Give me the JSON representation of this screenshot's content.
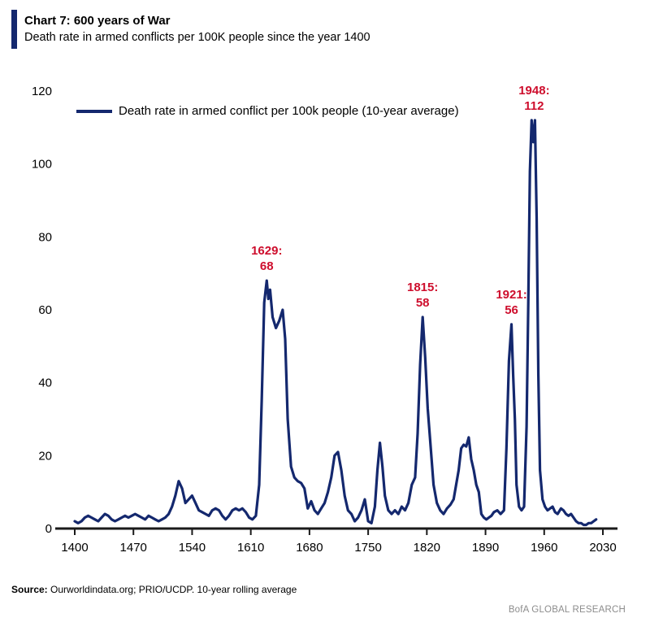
{
  "header": {
    "title": "Chart 7: 600 years of War",
    "subtitle": "Death rate in armed conflicts per 100K people since the year 1400"
  },
  "footer": {
    "source_label": "Source:",
    "source_text": " Ourworldindata.org; PRIO/UCDP. 10-year rolling average",
    "brand": "BofA GLOBAL RESEARCH"
  },
  "colors": {
    "line": "#14286E",
    "accent_bar": "#14286E",
    "annotation": "#CE0E2D",
    "axis": "#1A1A1A",
    "tick_text": "#000000",
    "brand_text": "#8C8C8C"
  },
  "chart_data": {
    "type": "line",
    "title": "Chart 7: 600 years of War",
    "subtitle": "Death rate in armed conflicts per 100K people since the year 1400",
    "legend": [
      {
        "label": "Death rate in armed conflict per 100k people (10-year average)",
        "color": "#14286E"
      }
    ],
    "legend_position": "top-left-inside",
    "grid": false,
    "xlabel": "",
    "ylabel": "",
    "xlim": [
      1400,
      2030
    ],
    "ylim": [
      0,
      120
    ],
    "x_ticks": [
      1400,
      1470,
      1540,
      1610,
      1680,
      1750,
      1820,
      1890,
      1960,
      2030
    ],
    "y_ticks": [
      0,
      20,
      40,
      60,
      80,
      100,
      120
    ],
    "annotations": [
      {
        "line1": "1629:",
        "line2": "68",
        "year": 1629,
        "value": 68
      },
      {
        "line1": "1815:",
        "line2": "58",
        "year": 1815,
        "value": 58
      },
      {
        "line1": "1921:",
        "line2": "56",
        "year": 1921,
        "value": 56
      },
      {
        "line1": "1948:",
        "line2": "112",
        "year": 1948,
        "value": 112
      }
    ],
    "series": [
      {
        "name": "Death rate in armed conflict per 100k people (10-year average)",
        "color": "#14286E",
        "points": [
          [
            1400,
            2
          ],
          [
            1404,
            1.5
          ],
          [
            1408,
            2
          ],
          [
            1412,
            3
          ],
          [
            1416,
            3.5
          ],
          [
            1420,
            3
          ],
          [
            1424,
            2.5
          ],
          [
            1428,
            2
          ],
          [
            1432,
            3
          ],
          [
            1436,
            4
          ],
          [
            1440,
            3.5
          ],
          [
            1444,
            2.5
          ],
          [
            1448,
            2
          ],
          [
            1452,
            2.5
          ],
          [
            1456,
            3
          ],
          [
            1460,
            3.5
          ],
          [
            1464,
            3
          ],
          [
            1468,
            3.5
          ],
          [
            1472,
            4
          ],
          [
            1476,
            3.5
          ],
          [
            1480,
            3
          ],
          [
            1484,
            2.5
          ],
          [
            1488,
            3.5
          ],
          [
            1492,
            3
          ],
          [
            1496,
            2.5
          ],
          [
            1500,
            2
          ],
          [
            1504,
            2.5
          ],
          [
            1508,
            3
          ],
          [
            1512,
            4
          ],
          [
            1516,
            6
          ],
          [
            1520,
            9
          ],
          [
            1524,
            13
          ],
          [
            1528,
            11
          ],
          [
            1532,
            7
          ],
          [
            1536,
            8
          ],
          [
            1540,
            9
          ],
          [
            1544,
            7
          ],
          [
            1548,
            5
          ],
          [
            1552,
            4.5
          ],
          [
            1556,
            4
          ],
          [
            1560,
            3.5
          ],
          [
            1564,
            5
          ],
          [
            1568,
            5.5
          ],
          [
            1572,
            5
          ],
          [
            1576,
            3.5
          ],
          [
            1580,
            2.5
          ],
          [
            1584,
            3.5
          ],
          [
            1588,
            5
          ],
          [
            1592,
            5.5
          ],
          [
            1596,
            5
          ],
          [
            1600,
            5.5
          ],
          [
            1604,
            4.5
          ],
          [
            1608,
            3
          ],
          [
            1612,
            2.5
          ],
          [
            1616,
            3.5
          ],
          [
            1620,
            12
          ],
          [
            1623,
            35
          ],
          [
            1626,
            62
          ],
          [
            1629,
            68
          ],
          [
            1631,
            63
          ],
          [
            1633,
            65.5
          ],
          [
            1636,
            58
          ],
          [
            1640,
            55
          ],
          [
            1644,
            57
          ],
          [
            1648,
            60
          ],
          [
            1651,
            52
          ],
          [
            1654,
            30
          ],
          [
            1658,
            17
          ],
          [
            1662,
            14
          ],
          [
            1666,
            13
          ],
          [
            1670,
            12.5
          ],
          [
            1674,
            11
          ],
          [
            1678,
            5.5
          ],
          [
            1682,
            7.5
          ],
          [
            1686,
            5
          ],
          [
            1690,
            4
          ],
          [
            1694,
            5.5
          ],
          [
            1698,
            7
          ],
          [
            1702,
            10
          ],
          [
            1706,
            14
          ],
          [
            1710,
            20
          ],
          [
            1714,
            21
          ],
          [
            1718,
            16
          ],
          [
            1722,
            9
          ],
          [
            1726,
            5
          ],
          [
            1730,
            4
          ],
          [
            1734,
            2
          ],
          [
            1738,
            3
          ],
          [
            1742,
            5
          ],
          [
            1746,
            8
          ],
          [
            1750,
            2
          ],
          [
            1754,
            1.5
          ],
          [
            1758,
            6
          ],
          [
            1761,
            16
          ],
          [
            1764,
            23.5
          ],
          [
            1767,
            17
          ],
          [
            1770,
            9
          ],
          [
            1774,
            5
          ],
          [
            1778,
            4
          ],
          [
            1782,
            5
          ],
          [
            1786,
            4
          ],
          [
            1790,
            6
          ],
          [
            1794,
            5
          ],
          [
            1798,
            7
          ],
          [
            1802,
            12
          ],
          [
            1806,
            14
          ],
          [
            1809,
            26
          ],
          [
            1812,
            45
          ],
          [
            1815,
            58
          ],
          [
            1818,
            47
          ],
          [
            1821,
            33
          ],
          [
            1824,
            24
          ],
          [
            1828,
            12
          ],
          [
            1832,
            7
          ],
          [
            1836,
            5
          ],
          [
            1840,
            4
          ],
          [
            1844,
            5.5
          ],
          [
            1848,
            6.5
          ],
          [
            1852,
            8
          ],
          [
            1855,
            12
          ],
          [
            1858,
            16
          ],
          [
            1861,
            22
          ],
          [
            1864,
            23
          ],
          [
            1867,
            22.5
          ],
          [
            1870,
            25
          ],
          [
            1873,
            19
          ],
          [
            1876,
            16
          ],
          [
            1879,
            12
          ],
          [
            1882,
            10
          ],
          [
            1885,
            4
          ],
          [
            1888,
            3
          ],
          [
            1891,
            2.5
          ],
          [
            1894,
            3
          ],
          [
            1897,
            3.5
          ],
          [
            1900,
            4.5
          ],
          [
            1904,
            5
          ],
          [
            1908,
            4
          ],
          [
            1912,
            5
          ],
          [
            1915,
            22
          ],
          [
            1918,
            46
          ],
          [
            1921,
            56
          ],
          [
            1923,
            42
          ],
          [
            1925,
            30
          ],
          [
            1927,
            12
          ],
          [
            1930,
            6
          ],
          [
            1933,
            5
          ],
          [
            1936,
            6
          ],
          [
            1939,
            28
          ],
          [
            1941,
            62
          ],
          [
            1943,
            98
          ],
          [
            1945,
            112
          ],
          [
            1947,
            106
          ],
          [
            1949,
            112
          ],
          [
            1951,
            85
          ],
          [
            1953,
            42
          ],
          [
            1955,
            16
          ],
          [
            1958,
            8
          ],
          [
            1961,
            6
          ],
          [
            1964,
            5
          ],
          [
            1967,
            5.5
          ],
          [
            1970,
            6
          ],
          [
            1973,
            4.5
          ],
          [
            1976,
            4
          ],
          [
            1980,
            5.5
          ],
          [
            1983,
            5
          ],
          [
            1986,
            4
          ],
          [
            1989,
            3.5
          ],
          [
            1992,
            4
          ],
          [
            1995,
            3
          ],
          [
            1998,
            2
          ],
          [
            2001,
            1.5
          ],
          [
            2004,
            1.5
          ],
          [
            2007,
            1
          ],
          [
            2010,
            1
          ],
          [
            2013,
            1.5
          ],
          [
            2016,
            1.5
          ],
          [
            2019,
            2
          ],
          [
            2022,
            2.5
          ]
        ]
      }
    ]
  }
}
